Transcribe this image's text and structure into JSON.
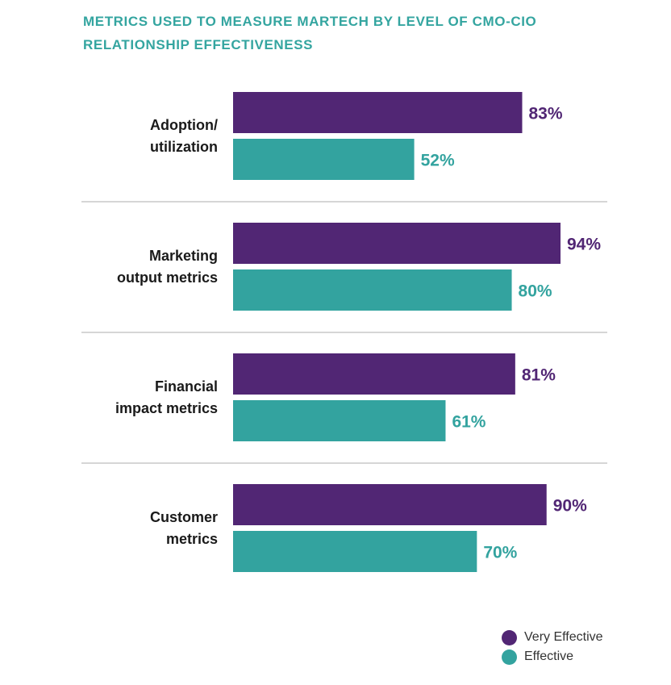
{
  "chart_data": {
    "type": "bar",
    "orientation": "horizontal",
    "title": "METRICS USED TO MEASURE MARTECH BY LEVEL OF CMO-CIO RELATIONSHIP EFFECTIVENESS",
    "categories": [
      [
        "Adoption/",
        "utilization"
      ],
      [
        "Marketing",
        "output metrics"
      ],
      [
        "Financial",
        "impact metrics"
      ],
      [
        "Customer",
        "metrics"
      ]
    ],
    "series": [
      {
        "name": "Very Effective",
        "color": "#512674",
        "values": [
          83,
          94,
          81,
          90
        ],
        "labels": [
          "83%",
          "94%",
          "81%",
          "90%"
        ]
      },
      {
        "name": "Effective",
        "color": "#33a39f",
        "values": [
          52,
          80,
          61,
          70
        ],
        "labels": [
          "52%",
          "80%",
          "61%",
          "70%"
        ]
      }
    ],
    "xlim": [
      0,
      100
    ],
    "legend_position": "bottom-right",
    "grid": false
  },
  "colors": {
    "title": "#34a5a0",
    "separator": "#c8c8c8"
  }
}
